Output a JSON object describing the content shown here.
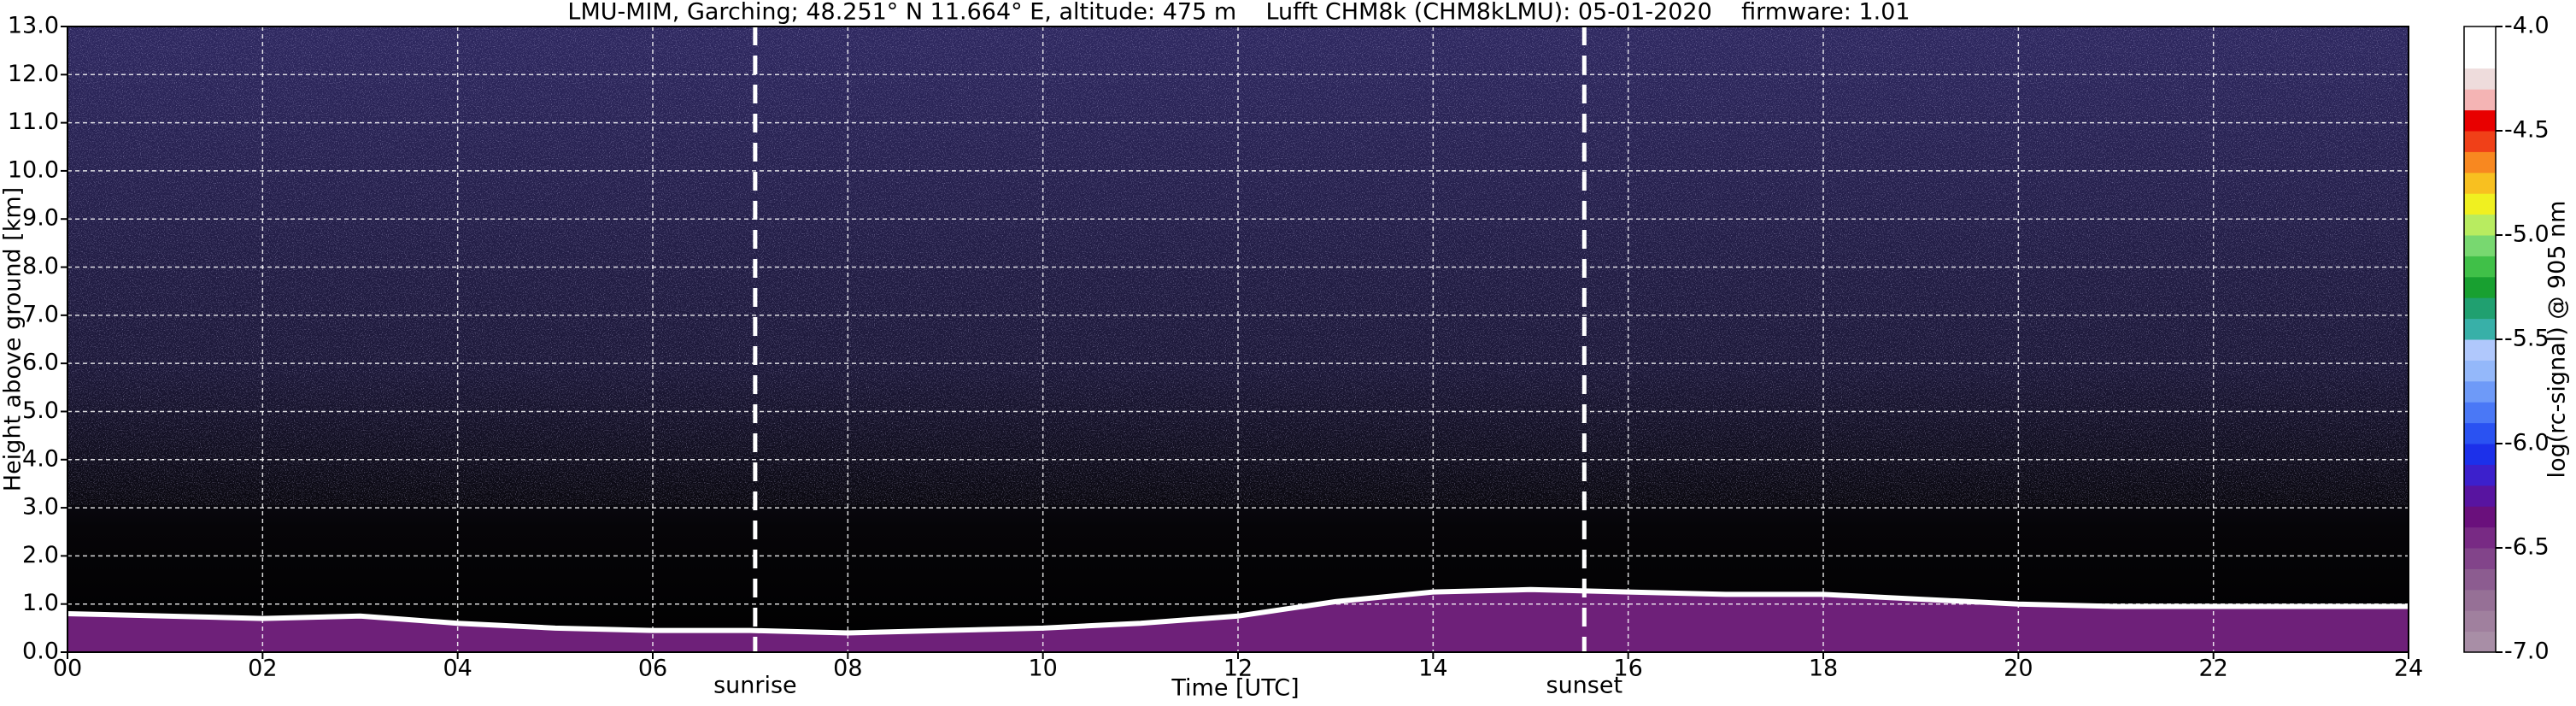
{
  "chart_data": {
    "type": "heatmap",
    "title": "LMU-MIM, Garching; 48.251° N 11.664° E, altitude: 475 m    Lufft CHM8k (CHM8kLMU): 05-01-2020    firmware: 1.01",
    "xlabel": "Time [UTC]",
    "ylabel": "Height above ground [km]",
    "xlim": [
      0,
      24
    ],
    "xticks": [
      {
        "value": 0,
        "label": "00"
      },
      {
        "value": 2,
        "label": "02"
      },
      {
        "value": 4,
        "label": "04"
      },
      {
        "value": 6,
        "label": "06"
      },
      {
        "value": 8,
        "label": "08"
      },
      10,
      12,
      14,
      16,
      18,
      20,
      22,
      24
    ],
    "ylim": [
      0,
      13
    ],
    "yticks": [
      {
        "value": 0,
        "label": "0.0"
      },
      {
        "value": 1,
        "label": "1.0"
      },
      {
        "value": 2,
        "label": "2.0"
      },
      {
        "value": 3,
        "label": "3.0"
      },
      {
        "value": 4,
        "label": "4.0"
      },
      {
        "value": 5,
        "label": "5.0"
      },
      {
        "value": 6,
        "label": "6.0"
      },
      {
        "value": 7,
        "label": "7.0"
      },
      {
        "value": 8,
        "label": "8.0"
      },
      {
        "value": 9,
        "label": "9.0"
      },
      {
        "value": 10,
        "label": "10.0"
      },
      {
        "value": 11,
        "label": "11.0"
      },
      {
        "value": 12,
        "label": "12.0"
      },
      {
        "value": 13,
        "label": "13.0"
      }
    ],
    "grid": true,
    "x": [
      0,
      1,
      2,
      3,
      4,
      5,
      6,
      7,
      8,
      9,
      10,
      11,
      12,
      13,
      14,
      15,
      16,
      17,
      18,
      19,
      20,
      21,
      22,
      23,
      24
    ],
    "series": [
      {
        "color": "#7a2486",
        "line_color": "#ffffff",
        "values": [
          0.8,
          0.75,
          0.7,
          0.75,
          0.6,
          0.5,
          0.45,
          0.45,
          0.4,
          0.45,
          0.5,
          0.6,
          0.75,
          1.05,
          1.25,
          1.3,
          1.25,
          1.2,
          1.2,
          1.1,
          1.0,
          0.95,
          0.95,
          0.95,
          0.95
        ]
      }
    ],
    "annotations": [
      {
        "x": 7.05,
        "text": "sunrise"
      },
      {
        "x": 15.55,
        "text": "sunset"
      }
    ],
    "colorbar": {
      "label": "log(rc-signal) @ 905 nm",
      "lim": [
        -7,
        -4
      ],
      "ticks": [
        {
          "value": -4,
          "label": "-4.0"
        },
        -4.5,
        {
          "value": -5,
          "label": "-5.0"
        },
        -5.5,
        {
          "value": -6,
          "label": "-6.0"
        },
        -6.5,
        {
          "value": -7,
          "label": "-7.0"
        }
      ],
      "colors": [
        "#a88ea6",
        "#a0809e",
        "#967096",
        "#8c5c90",
        "#82448a",
        "#782a84",
        "#6a107c",
        "#5814a0",
        "#3c20cc",
        "#1c30ea",
        "#2a52f2",
        "#4a78f6",
        "#6e9af8",
        "#94b8fa",
        "#b0c8fc",
        "#38b0a8",
        "#20a070",
        "#18a030",
        "#40c048",
        "#78d870",
        "#b8ec60",
        "#f0f020",
        "#f8c020",
        "#f88820",
        "#f04018",
        "#e80000",
        "#f4b4b4",
        "#eedcdc",
        "#ffffff",
        "#ffffff"
      ]
    }
  }
}
